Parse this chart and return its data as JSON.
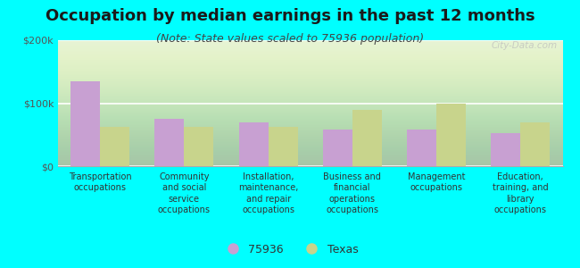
{
  "title": "Occupation by median earnings in the past 12 months",
  "subtitle": "(Note: State values scaled to 75936 population)",
  "categories": [
    "Transportation\noccupations",
    "Community\nand social\nservice\noccupations",
    "Installation,\nmaintenance,\nand repair\noccupations",
    "Business and\nfinancial\noperations\noccupations",
    "Management\noccupations",
    "Education,\ntraining, and\nlibrary\noccupations"
  ],
  "values_75936": [
    135000,
    75000,
    70000,
    58000,
    58000,
    53000
  ],
  "values_texas": [
    63000,
    63000,
    63000,
    90000,
    100000,
    70000
  ],
  "color_75936": "#c8a0d2",
  "color_texas": "#c8d48c",
  "ylim": [
    0,
    200000
  ],
  "yticks": [
    0,
    100000,
    200000
  ],
  "ytick_labels": [
    "$0",
    "$100k",
    "$200k"
  ],
  "background_color": "#00ffff",
  "legend_label_75936": "75936",
  "legend_label_texas": "Texas",
  "watermark": "City-Data.com",
  "bar_width": 0.35,
  "title_fontsize": 13,
  "subtitle_fontsize": 9,
  "tick_fontsize": 8,
  "legend_fontsize": 9
}
